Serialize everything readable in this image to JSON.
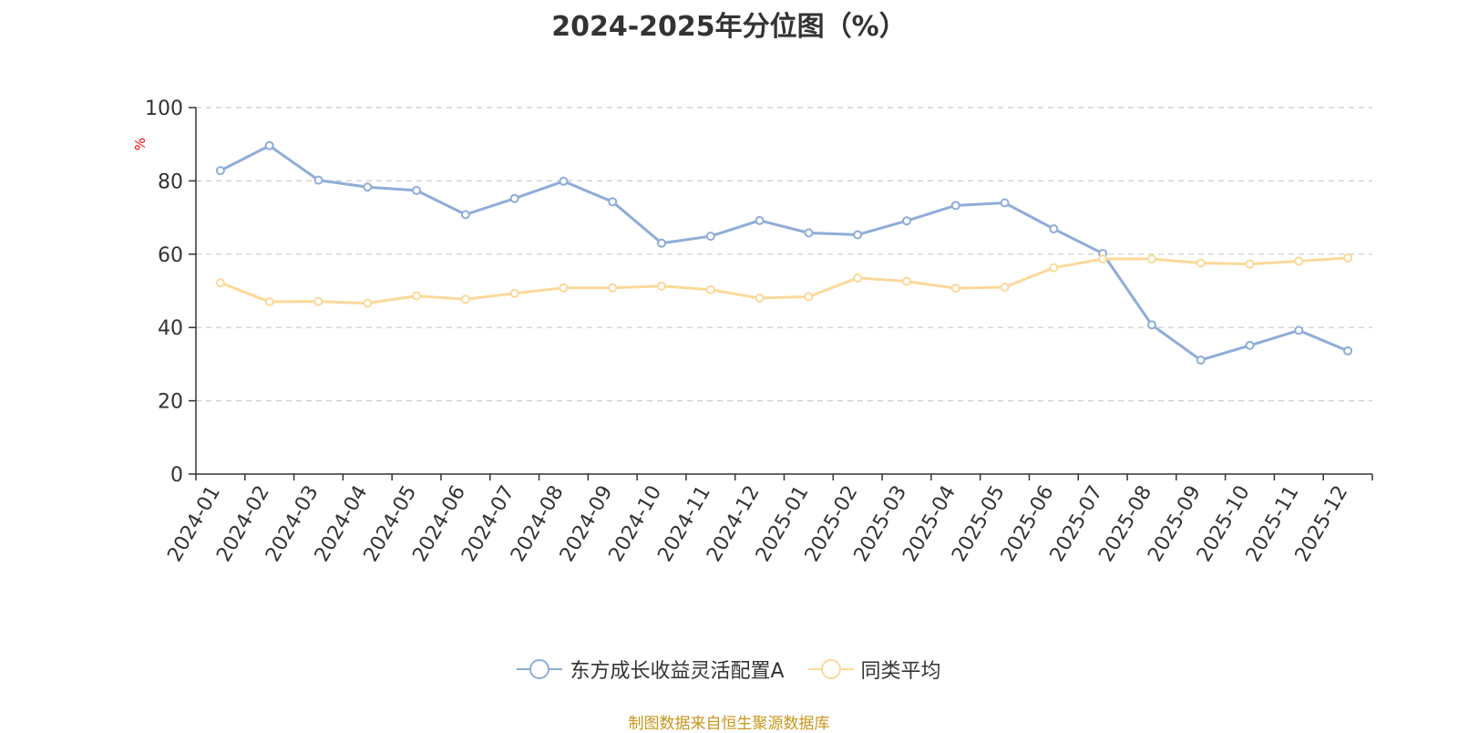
{
  "chart_data": {
    "type": "line",
    "title": "2024-2025年分位图（%）",
    "ylabel": "%",
    "xlabel": "",
    "ylim": [
      0,
      100
    ],
    "yticks": [
      0,
      20,
      40,
      60,
      80,
      100
    ],
    "grid": true,
    "legend_position": "bottom-center",
    "categories": [
      "2024-01",
      "2024-02",
      "2024-03",
      "2024-04",
      "2024-05",
      "2024-06",
      "2024-07",
      "2024-08",
      "2024-09",
      "2024-10",
      "2024-11",
      "2024-12",
      "2025-01",
      "2025-02",
      "2025-03",
      "2025-04",
      "2025-05",
      "2025-06",
      "2025-07",
      "2025-08",
      "2025-09",
      "2025-10",
      "2025-11",
      "2025-12"
    ],
    "series": [
      {
        "name": "东方成长收益灵活配置A",
        "color": "#8eadd8",
        "values": [
          82.8,
          89.6,
          80.2,
          78.3,
          77.4,
          70.8,
          75.2,
          79.9,
          74.3,
          63.0,
          64.9,
          69.2,
          65.8,
          65.3,
          69.1,
          73.3,
          74.0,
          66.9,
          60.2,
          40.7,
          31.1,
          35.1,
          39.2,
          33.6
        ]
      },
      {
        "name": "同类平均",
        "color": "#fcd99a",
        "values": [
          52.2,
          47.0,
          47.1,
          46.6,
          48.6,
          47.7,
          49.3,
          50.8,
          50.8,
          51.3,
          50.3,
          48.0,
          48.4,
          53.5,
          52.6,
          50.7,
          51.0,
          56.3,
          58.7,
          58.7,
          57.6,
          57.3,
          58.1,
          59.0
        ]
      }
    ]
  },
  "source": "制图数据来自恒生聚源数据库",
  "colors": {
    "axis": "#333333",
    "grid": "#cccccc",
    "ylabel": "#ff0000",
    "source": "#c8961e",
    "text": "#333333"
  }
}
